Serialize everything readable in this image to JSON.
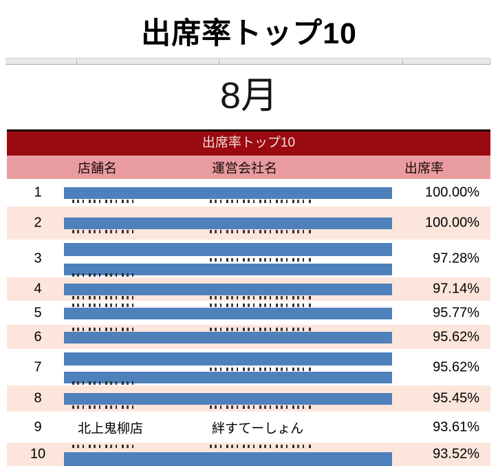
{
  "title": "出席率トップ10",
  "month": "8月",
  "table": {
    "header": "出席率トップ10",
    "columns": [
      "店舗名",
      "運営会社名",
      "出席率"
    ],
    "rows": [
      {
        "rank": "1",
        "store": "",
        "company": "",
        "rate": "100.00%",
        "redacted": true,
        "lines": 1,
        "peek": "bottom"
      },
      {
        "rank": "2",
        "store": "",
        "company": "",
        "rate": "100.00%",
        "redacted": true,
        "lines": 1,
        "peek": "bottom"
      },
      {
        "rank": "3",
        "store": "",
        "company": "",
        "rate": "97.28%",
        "redacted": true,
        "lines": 2,
        "peek": "gap"
      },
      {
        "rank": "4",
        "store": "",
        "company": "",
        "rate": "97.14%",
        "redacted": true,
        "lines": 1,
        "peek": "bottom"
      },
      {
        "rank": "5",
        "store": "",
        "company": "",
        "rate": "95.77%",
        "redacted": true,
        "lines": 1,
        "peek": "top"
      },
      {
        "rank": "6",
        "store": "",
        "company": "",
        "rate": "95.62%",
        "redacted": true,
        "lines": 1,
        "peek": "top"
      },
      {
        "rank": "7",
        "store": "",
        "company": "",
        "rate": "95.62%",
        "redacted": true,
        "lines": 2,
        "peek": "gap"
      },
      {
        "rank": "8",
        "store": "",
        "company": "",
        "rate": "95.45%",
        "redacted": true,
        "lines": 1,
        "peek": "bottom"
      },
      {
        "rank": "9",
        "store": "北上鬼柳店",
        "company": "絆すてーしょん",
        "rate": "93.61%",
        "redacted": false,
        "lines": 1,
        "peek": "none"
      },
      {
        "rank": "10",
        "store": "",
        "company": "",
        "rate": "93.52%",
        "redacted": true,
        "lines": 1,
        "peek": "top"
      }
    ]
  },
  "colors": {
    "header_red": "#9A0A10",
    "header_red_top_border": "#1A0405",
    "header_pink": "#E99CA0",
    "row_stripe": "#FCE5DB",
    "redaction_blue": "#4E80BC"
  }
}
